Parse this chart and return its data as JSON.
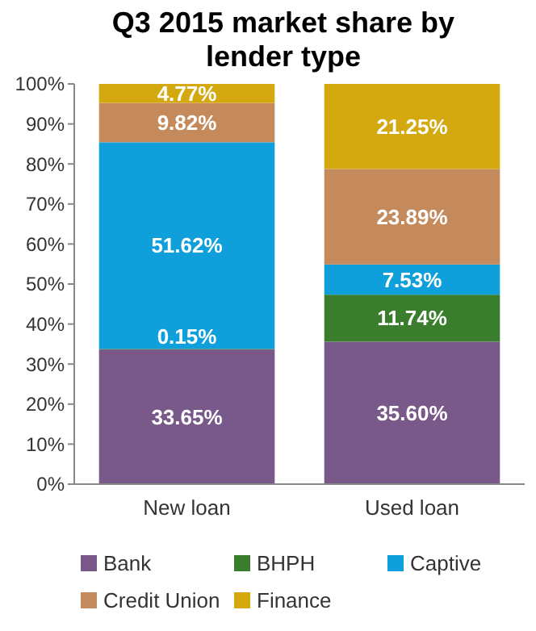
{
  "chart_data": {
    "type": "bar",
    "title": "Q3 2015 market share by lender type",
    "stacked": true,
    "categories": [
      "New loan",
      "Used loan"
    ],
    "series": [
      {
        "name": "Bank",
        "color": "#78598a",
        "values": [
          33.65,
          35.6
        ],
        "value_labels": [
          "33.65%",
          "35.60%"
        ]
      },
      {
        "name": "BHPH",
        "color": "#3a7d2c",
        "values": [
          0.15,
          11.74
        ],
        "value_labels": [
          "0.15%",
          "11.74%"
        ]
      },
      {
        "name": "Captive",
        "color": "#0fa0dc",
        "values": [
          51.62,
          7.53
        ],
        "value_labels": [
          "51.62%",
          "7.53%"
        ]
      },
      {
        "name": "Credit Union",
        "color": "#c58a5b",
        "values": [
          9.82,
          23.89
        ],
        "value_labels": [
          "9.82%",
          "23.89%"
        ]
      },
      {
        "name": "Finance",
        "color": "#d3a90f",
        "values": [
          4.77,
          21.25
        ],
        "value_labels": [
          "4.77%",
          "21.25%"
        ]
      }
    ],
    "ylim": [
      0,
      100
    ],
    "yticks": [
      {
        "value": 0,
        "label": "0%"
      },
      {
        "value": 10,
        "label": "10%"
      },
      {
        "value": 20,
        "label": "20%"
      },
      {
        "value": 30,
        "label": "30%"
      },
      {
        "value": 40,
        "label": "40%"
      },
      {
        "value": 50,
        "label": "50%"
      },
      {
        "value": 60,
        "label": "60%"
      },
      {
        "value": 70,
        "label": "70%"
      },
      {
        "value": 80,
        "label": "80%"
      },
      {
        "value": 90,
        "label": "90%"
      },
      {
        "value": 100,
        "label": "100%"
      }
    ],
    "legend": "bottom"
  }
}
